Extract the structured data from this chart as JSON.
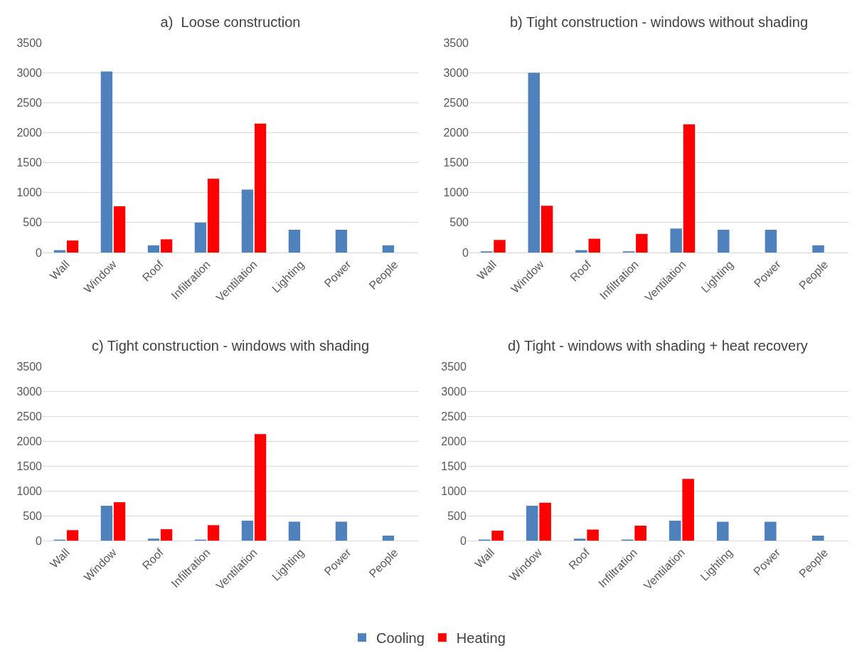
{
  "chart_data": [
    {
      "type": "bar",
      "title": "a)  Loose construction",
      "categories": [
        "Wall",
        "Window",
        "Roof",
        "Infiltration",
        "Ventilation",
        "Lighting",
        "Power",
        "People"
      ],
      "series": [
        {
          "color": "#4f81bd",
          "values": [
            40,
            3020,
            120,
            500,
            1050,
            380,
            380,
            120
          ]
        },
        {
          "color": "#ff0000",
          "values": [
            200,
            770,
            220,
            1230,
            2150,
            null,
            null,
            null
          ]
        }
      ],
      "ylim": [
        0,
        3500
      ],
      "yticks": [
        0,
        500,
        1000,
        1500,
        2000,
        2500,
        3000,
        3500
      ],
      "grid": "y",
      "legend": false
    },
    {
      "type": "bar",
      "title": "b) Tight construction - windows without shading",
      "categories": [
        "Wall",
        "Window",
        "Roof",
        "Infiltration",
        "Ventilation",
        "Lighting",
        "Power",
        "People"
      ],
      "series": [
        {
          "color": "#4f81bd",
          "values": [
            20,
            3000,
            40,
            20,
            400,
            380,
            380,
            120
          ]
        },
        {
          "color": "#ff0000",
          "values": [
            210,
            780,
            230,
            310,
            2140,
            null,
            null,
            null
          ]
        }
      ],
      "ylim": [
        0,
        3500
      ],
      "yticks": [
        0,
        500,
        1000,
        1500,
        2000,
        2500,
        3000,
        3500
      ],
      "grid": "y",
      "legend": false
    },
    {
      "type": "bar",
      "title": "c) Tight construction - windows with shading",
      "categories": [
        "Wall",
        "Window",
        "Roof",
        "Infiltration",
        "Ventilation",
        "Lighting",
        "Power",
        "People"
      ],
      "series": [
        {
          "color": "#4f81bd",
          "values": [
            20,
            700,
            40,
            20,
            400,
            380,
            380,
            100
          ]
        },
        {
          "color": "#ff0000",
          "values": [
            210,
            770,
            230,
            310,
            2140,
            null,
            null,
            null
          ]
        }
      ],
      "ylim": [
        0,
        3500
      ],
      "yticks": [
        0,
        500,
        1000,
        1500,
        2000,
        2500,
        3000,
        3500
      ],
      "grid": "y",
      "legend": false
    },
    {
      "type": "bar",
      "title": "d) Tight - windows with shading + heat recovery",
      "categories": [
        "Wall",
        "Window",
        "Roof",
        "Infiltration",
        "Ventilation",
        "Lighting",
        "Power",
        "People"
      ],
      "series": [
        {
          "name": "Cooling",
          "color": "#4f81bd",
          "values": [
            20,
            700,
            40,
            20,
            400,
            380,
            380,
            100
          ]
        },
        {
          "name": "Heating",
          "color": "#ff0000",
          "values": [
            200,
            760,
            220,
            300,
            1240,
            null,
            null,
            null
          ]
        }
      ],
      "ylim": [
        0,
        3500
      ],
      "yticks": [
        0,
        500,
        1000,
        1500,
        2000,
        2500,
        3000,
        3500
      ],
      "grid": "y",
      "legend": "bottom"
    }
  ]
}
